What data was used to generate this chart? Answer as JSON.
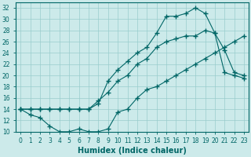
{
  "xlabel": "Humidex (Indice chaleur)",
  "bg_color": "#cceaea",
  "line_color": "#006666",
  "xlim": [
    -0.5,
    23.5
  ],
  "ylim": [
    10,
    33
  ],
  "xticks": [
    0,
    1,
    2,
    3,
    4,
    5,
    6,
    7,
    8,
    9,
    10,
    11,
    12,
    13,
    14,
    15,
    16,
    17,
    18,
    19,
    20,
    21,
    22,
    23
  ],
  "yticks": [
    10,
    12,
    14,
    16,
    18,
    20,
    22,
    24,
    26,
    28,
    30,
    32
  ],
  "line1_x": [
    0,
    1,
    2,
    3,
    4,
    5,
    6,
    7,
    8,
    9,
    10,
    11,
    12,
    13,
    14,
    15,
    16,
    17,
    18,
    19,
    20,
    21,
    22,
    23
  ],
  "line1_y": [
    14,
    13,
    12.5,
    11,
    10,
    10,
    10.5,
    10,
    10,
    10.5,
    13.5,
    14,
    16,
    17.5,
    18,
    19,
    20,
    21,
    22,
    23,
    24,
    25,
    26,
    27
  ],
  "line2_x": [
    0,
    1,
    2,
    3,
    4,
    5,
    6,
    7,
    8,
    9,
    10,
    11,
    12,
    13,
    14,
    15,
    16,
    17,
    18,
    19,
    20,
    21,
    22,
    23
  ],
  "line2_y": [
    14,
    14,
    14,
    14,
    14,
    14,
    14,
    14,
    15,
    19,
    21,
    22.5,
    24,
    25,
    27.5,
    30.5,
    30.5,
    31,
    32,
    31,
    27.5,
    24.5,
    20.5,
    20
  ],
  "line3_x": [
    0,
    1,
    2,
    3,
    4,
    5,
    6,
    7,
    8,
    9,
    10,
    11,
    12,
    13,
    14,
    15,
    16,
    17,
    18,
    19,
    20,
    21,
    22,
    23
  ],
  "line3_y": [
    14,
    14,
    14,
    14,
    14,
    14,
    14,
    14,
    15.5,
    17,
    19,
    20,
    22,
    23,
    25,
    26,
    26.5,
    27,
    27,
    28,
    27.5,
    20.5,
    20,
    19.5
  ],
  "marker": "+",
  "markersize": 4,
  "markeredgewidth": 1.0,
  "linewidth": 0.8,
  "grid_color": "#99cccc",
  "xlabel_fontsize": 7,
  "tick_fontsize": 5.5
}
